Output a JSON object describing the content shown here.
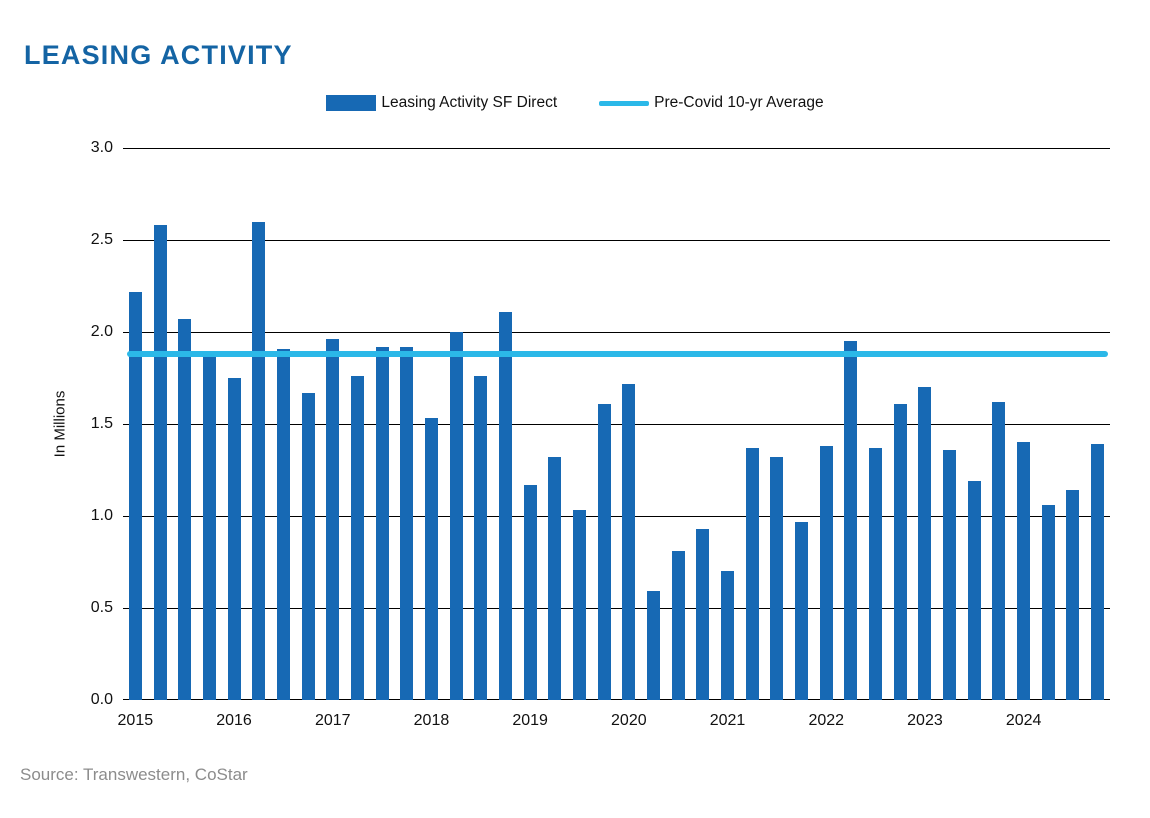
{
  "page": {
    "title": "LEASING ACTIVITY",
    "source": "Source: Transwestern, CoStar"
  },
  "legend": {
    "bar_label": "Leasing Activity SF Direct",
    "line_label": "Pre-Covid 10-yr Average"
  },
  "colors": {
    "title": "#1464a4",
    "bar": "#1769b4",
    "avg_line": "#2bb8e8",
    "grid": "#000000"
  },
  "chart_data": {
    "type": "bar",
    "title": "LEASING ACTIVITY",
    "ylabel": "In Millions",
    "ylim": [
      0,
      3.0
    ],
    "ytick_labels": [
      "0.0",
      "0.5",
      "1.0",
      "1.5",
      "2.0",
      "2.5",
      "3.0"
    ],
    "x_year_labels": [
      "2015",
      "2016",
      "2017",
      "2018",
      "2019",
      "2020",
      "2021",
      "2022",
      "2023",
      "2024"
    ],
    "bars_per_year": 4,
    "grid": "horizontal",
    "legend_position": "top",
    "series": [
      {
        "name": "Leasing Activity SF Direct",
        "type": "bar",
        "values": [
          2.22,
          2.58,
          2.07,
          1.87,
          1.75,
          2.6,
          1.91,
          1.67,
          1.96,
          1.76,
          1.92,
          1.92,
          1.53,
          2.0,
          1.76,
          2.11,
          1.17,
          1.32,
          1.03,
          1.61,
          1.72,
          0.59,
          0.81,
          0.93,
          0.7,
          1.37,
          1.32,
          0.97,
          1.38,
          1.95,
          1.37,
          1.61,
          1.7,
          1.36,
          1.19,
          1.62,
          1.4,
          1.06,
          1.14,
          1.39
        ]
      },
      {
        "name": "Pre-Covid 10-yr Average",
        "type": "line",
        "value": 1.88
      }
    ]
  }
}
